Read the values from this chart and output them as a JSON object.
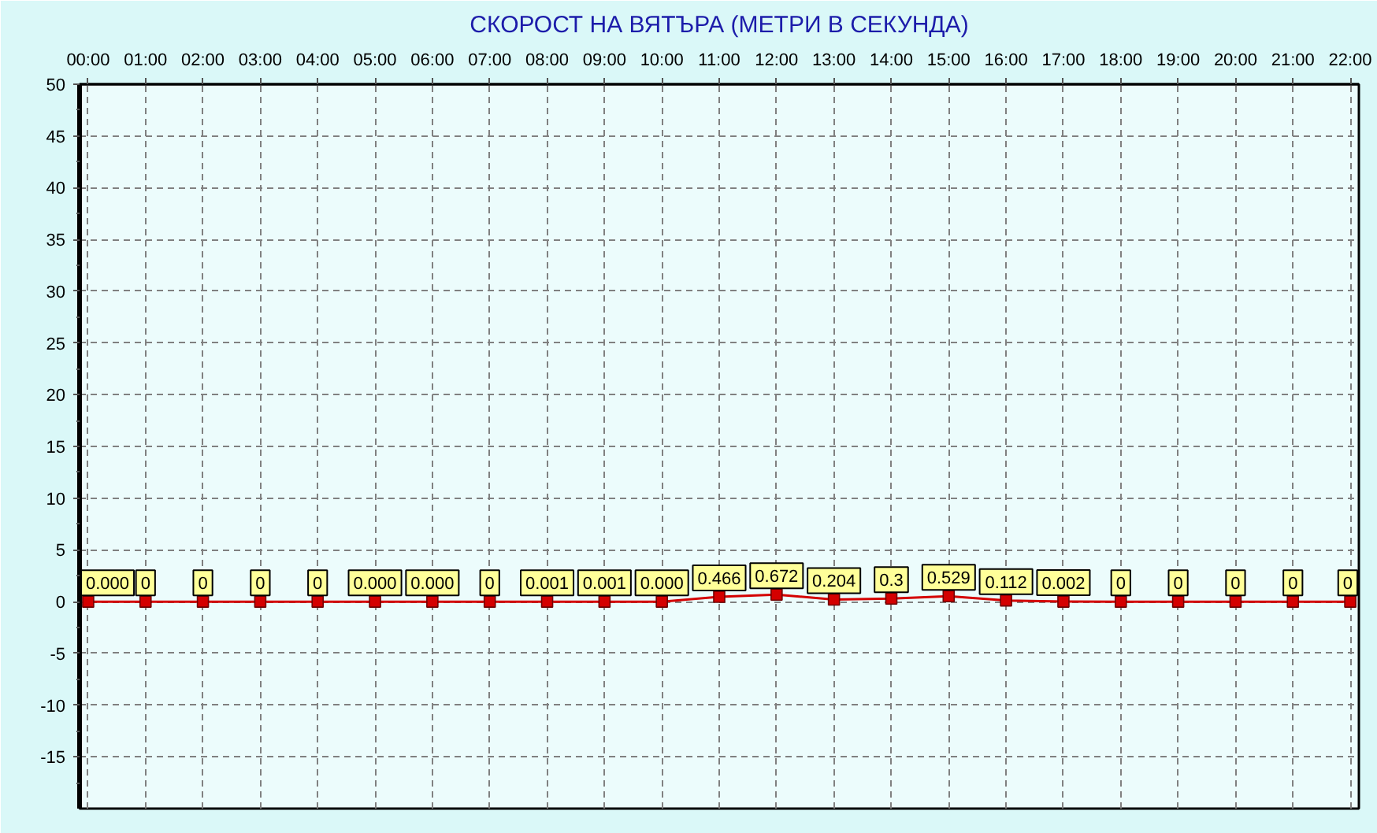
{
  "chart_data": {
    "type": "line",
    "title": "СКОРОСТ НА ВЯТЪРА (МЕТРИ В СЕКУНДА)",
    "x": [
      0,
      1,
      2,
      3,
      4,
      5,
      6,
      7,
      8,
      9,
      10,
      11,
      12,
      13,
      14,
      15,
      16,
      17,
      18,
      19,
      20,
      21,
      22
    ],
    "series": [
      {
        "color": "#d40000",
        "values": [
          0,
          0,
          0,
          0,
          0,
          0,
          0,
          0,
          0.001,
          0.001,
          0,
          0.466,
          0.672,
          0.204,
          0.3,
          0.529,
          0.112,
          0.002,
          0,
          0,
          0,
          0,
          0
        ],
        "value_labels": [
          "0.000",
          "0",
          "0",
          "0",
          "0",
          "0.000",
          "0.000",
          "0",
          "0.001",
          "0.001",
          "0.000",
          "0.466",
          "0.672",
          "0.204",
          "0.3",
          "0.529",
          "0.112",
          "0.002",
          "0",
          "0",
          "0",
          "0",
          "0"
        ]
      }
    ],
    "xlim": [
      -0.15,
      22.15
    ],
    "xticks": [
      {
        "value": 0,
        "label": "00:00"
      },
      {
        "value": 1,
        "label": "01:00"
      },
      {
        "value": 2,
        "label": "02:00"
      },
      {
        "value": 3,
        "label": "03:00"
      },
      {
        "value": 4,
        "label": "04:00"
      },
      {
        "value": 5,
        "label": "05:00"
      },
      {
        "value": 6,
        "label": "06:00"
      },
      {
        "value": 7,
        "label": "07:00"
      },
      {
        "value": 8,
        "label": "08:00"
      },
      {
        "value": 9,
        "label": "09:00"
      },
      {
        "value": 10,
        "label": "10:00"
      },
      {
        "value": 11,
        "label": "11:00"
      },
      {
        "value": 12,
        "label": "12:00"
      },
      {
        "value": 13,
        "label": "13:00"
      },
      {
        "value": 14,
        "label": "14:00"
      },
      {
        "value": 15,
        "label": "15:00"
      },
      {
        "value": 16,
        "label": "16:00"
      },
      {
        "value": 17,
        "label": "17:00"
      },
      {
        "value": 18,
        "label": "18:00"
      },
      {
        "value": 19,
        "label": "19:00"
      },
      {
        "value": 20,
        "label": "20:00"
      },
      {
        "value": 21,
        "label": "21:00"
      },
      {
        "value": 22,
        "label": "22:00"
      }
    ],
    "ylim": [
      -20,
      50
    ],
    "yticks": [
      -15,
      -10,
      -5,
      0,
      5,
      10,
      15,
      20,
      25,
      30,
      35,
      40,
      45,
      50
    ],
    "grid": true,
    "marker": "square",
    "line_style": "solid"
  }
}
